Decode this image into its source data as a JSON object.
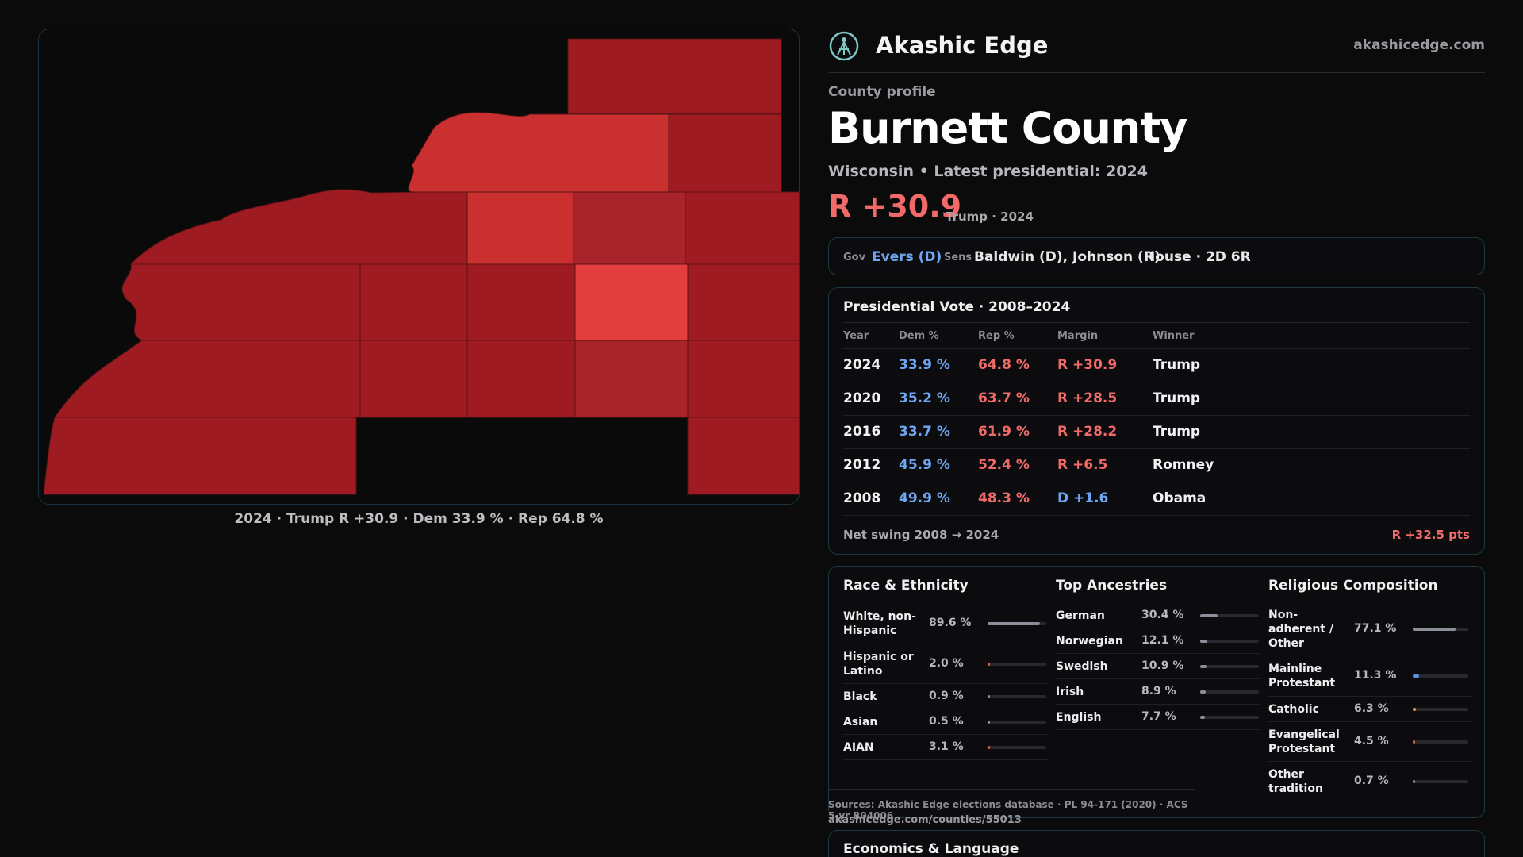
{
  "map": {
    "caption": "2024 · Trump R +30.9 · Dem 33.9 % · Rep 64.8 %",
    "colors": {
      "dark": "#9e1c21",
      "mid": "#a8232a",
      "light": "#c9302f",
      "lightest": "#e23e3e",
      "border": "#5a1316"
    }
  },
  "header": {
    "brand_name": "Akashic Edge",
    "brand_url": "akashicedge.com",
    "eyebrow": "County profile",
    "county_name": "Burnett County",
    "subline": "Wisconsin • Latest presidential: 2024",
    "margin": "R +30.9",
    "margin_note": "Trump · 2024"
  },
  "officials": {
    "gov_label": "Gov",
    "gov_value": "Evers (D)",
    "sens_label": "Sens",
    "sens_value": "Baldwin (D), Johnson (R)",
    "house_value": "House · 2D 6R"
  },
  "presidential": {
    "title": "Presidential Vote · 2008–2024",
    "headers": {
      "year": "Year",
      "dem": "Dem %",
      "rep": "Rep %",
      "margin": "Margin",
      "winner": "Winner"
    },
    "rows": [
      {
        "year": "2024",
        "dem": "33.9 %",
        "rep": "64.8 %",
        "margin": "R +30.9",
        "party": "R",
        "winner": "Trump"
      },
      {
        "year": "2020",
        "dem": "35.2 %",
        "rep": "63.7 %",
        "margin": "R +28.5",
        "party": "R",
        "winner": "Trump"
      },
      {
        "year": "2016",
        "dem": "33.7 %",
        "rep": "61.9 %",
        "margin": "R +28.2",
        "party": "R",
        "winner": "Trump"
      },
      {
        "year": "2012",
        "dem": "45.9 %",
        "rep": "52.4 %",
        "margin": "R +6.5",
        "party": "R",
        "winner": "Romney"
      },
      {
        "year": "2008",
        "dem": "49.9 %",
        "rep": "48.3 %",
        "margin": "D +1.6",
        "party": "D",
        "winner": "Obama"
      }
    ],
    "swing_label": "Net swing 2008 → 2024",
    "swing_value": "R +32.5 pts"
  },
  "race": {
    "title": "Race & Ethnicity",
    "items": [
      {
        "label": "White, non-Hispanic",
        "value": "89.6 %",
        "pct": 89.6,
        "color": "#8a8f9a"
      },
      {
        "label": "Hispanic or Latino",
        "value": "2.0 %",
        "pct": 2.0,
        "color": "#e0603a"
      },
      {
        "label": "Black",
        "value": "0.9 %",
        "pct": 0.9,
        "color": "#8a8f9a"
      },
      {
        "label": "Asian",
        "value": "0.5 %",
        "pct": 0.5,
        "color": "#8a8f9a"
      },
      {
        "label": "AIAN",
        "value": "3.1 %",
        "pct": 3.1,
        "color": "#e0603a"
      }
    ]
  },
  "ancestry": {
    "title": "Top Ancestries",
    "items": [
      {
        "label": "German",
        "value": "30.4 %",
        "pct": 30.4,
        "color": "#8a8f9a"
      },
      {
        "label": "Norwegian",
        "value": "12.1 %",
        "pct": 12.1,
        "color": "#8a8f9a"
      },
      {
        "label": "Swedish",
        "value": "10.9 %",
        "pct": 10.9,
        "color": "#8a8f9a"
      },
      {
        "label": "Irish",
        "value": "8.9 %",
        "pct": 8.9,
        "color": "#8a8f9a"
      },
      {
        "label": "English",
        "value": "7.7 %",
        "pct": 7.7,
        "color": "#8a8f9a"
      }
    ]
  },
  "religion": {
    "title": "Religious Composition",
    "items": [
      {
        "label": "Non-adherent / Other",
        "value": "77.1 %",
        "pct": 77.1,
        "color": "#8a8f9a"
      },
      {
        "label": "Mainline Protestant",
        "value": "11.3 %",
        "pct": 11.3,
        "color": "#5f8fe0"
      },
      {
        "label": "Catholic",
        "value": "6.3 %",
        "pct": 6.3,
        "color": "#e6a23a"
      },
      {
        "label": "Evangelical Protestant",
        "value": "4.5 %",
        "pct": 4.5,
        "color": "#e0603a"
      },
      {
        "label": "Other tradition",
        "value": "0.7 %",
        "pct": 0.7,
        "color": "#8a8f9a"
      }
    ]
  },
  "footer": {
    "sources": "Sources: Akashic Edge elections database · PL 94-171 (2020) · ACS 5-yr B04006",
    "url": "akashicedge.com/counties/55013",
    "econ_title": "Economics & Language"
  }
}
